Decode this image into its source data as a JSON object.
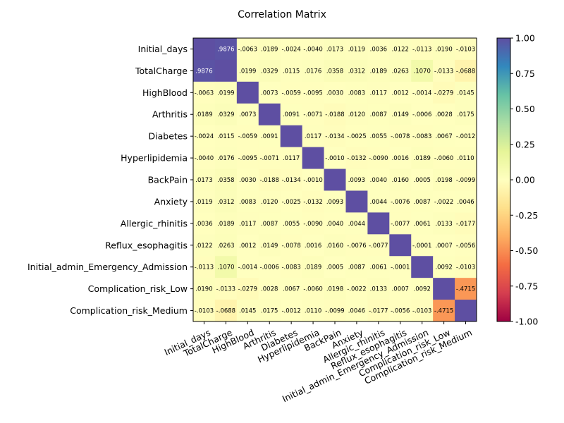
{
  "chart_data": {
    "type": "heatmap",
    "title": "Correlation Matrix",
    "labels": [
      "Initial_days",
      "TotalCharge",
      "HighBlood",
      "Arthritis",
      "Diabetes",
      "Hyperlipidemia",
      "BackPain",
      "Anxiety",
      "Allergic_rhinitis",
      "Reflux_esophagitis",
      "Initial_admin_Emergency_Admission",
      "Complication_risk_Low",
      "Complication_risk_Medium"
    ],
    "matrix": [
      [
        1.0,
        0.9876,
        -0.0063,
        0.0189,
        -0.0024,
        -0.004,
        0.0173,
        0.0119,
        0.0036,
        0.0122,
        -0.0113,
        0.019,
        -0.0103
      ],
      [
        0.9876,
        1.0,
        0.0199,
        0.0329,
        0.0115,
        0.0176,
        0.0358,
        0.0312,
        0.0189,
        0.0263,
        0.107,
        -0.0133,
        -0.0688
      ],
      [
        -0.0063,
        0.0199,
        1.0,
        0.0073,
        -0.0059,
        -0.0095,
        0.003,
        0.0083,
        0.0117,
        0.0012,
        -0.0014,
        -0.0279,
        0.0145
      ],
      [
        0.0189,
        0.0329,
        0.0073,
        1.0,
        0.0091,
        -0.0071,
        -0.0188,
        0.012,
        0.0087,
        0.0149,
        -0.0006,
        0.0028,
        0.0175
      ],
      [
        -0.0024,
        0.0115,
        -0.0059,
        0.0091,
        1.0,
        0.0117,
        -0.0134,
        -0.0025,
        0.0055,
        -0.0078,
        -0.0083,
        0.0067,
        -0.0012
      ],
      [
        -0.004,
        0.0176,
        -0.0095,
        -0.0071,
        0.0117,
        1.0,
        -0.001,
        -0.0132,
        -0.009,
        0.0016,
        0.0189,
        -0.006,
        0.011
      ],
      [
        0.0173,
        0.0358,
        0.003,
        -0.0188,
        -0.0134,
        -0.001,
        1.0,
        0.0093,
        0.004,
        0.016,
        0.0005,
        0.0198,
        -0.0099
      ],
      [
        0.0119,
        0.0312,
        0.0083,
        0.012,
        -0.0025,
        -0.0132,
        0.0093,
        1.0,
        0.0044,
        -0.0076,
        0.0087,
        -0.0022,
        0.0046
      ],
      [
        0.0036,
        0.0189,
        0.0117,
        0.0087,
        0.0055,
        -0.009,
        0.004,
        0.0044,
        1.0,
        -0.0077,
        0.0061,
        0.0133,
        -0.0177
      ],
      [
        0.0122,
        0.0263,
        0.0012,
        0.0149,
        -0.0078,
        0.0016,
        0.016,
        -0.0076,
        -0.0077,
        1.0,
        -0.0001,
        0.0007,
        -0.0056
      ],
      [
        -0.0113,
        0.107,
        -0.0014,
        -0.0006,
        -0.0083,
        0.0189,
        0.0005,
        0.0087,
        0.0061,
        -0.0001,
        1.0,
        0.0092,
        -0.0103
      ],
      [
        0.019,
        -0.0133,
        -0.0279,
        0.0028,
        0.0067,
        -0.006,
        0.0198,
        -0.0022,
        0.0133,
        0.0007,
        0.0092,
        1.0,
        -0.4715
      ],
      [
        -0.0103,
        -0.0688,
        0.0145,
        0.0175,
        -0.0012,
        0.011,
        -0.0099,
        0.0046,
        -0.0177,
        -0.0056,
        -0.0103,
        -0.4715,
        1.0
      ]
    ],
    "diagonal_annotated": false,
    "colormap": "Spectral",
    "vmin": -1.0,
    "vmax": 1.0,
    "colorbar_ticks": [
      "-1.00",
      "-0.75",
      "-0.50",
      "-0.25",
      "0.00",
      "0.25",
      "0.50",
      "0.75",
      "1.00"
    ],
    "colorbar_tick_values": [
      -1.0,
      -0.75,
      -0.5,
      -0.25,
      0.0,
      0.25,
      0.5,
      0.75,
      1.0
    ]
  }
}
